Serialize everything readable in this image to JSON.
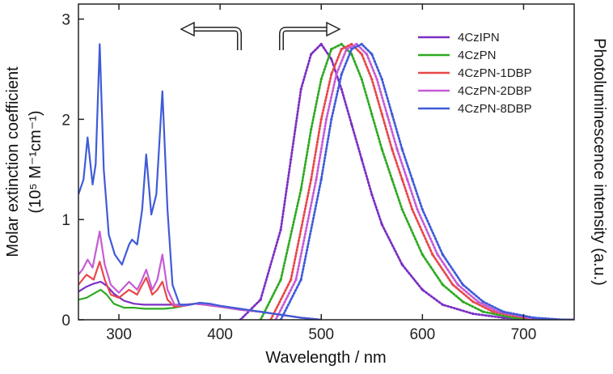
{
  "chart_data": {
    "type": "line",
    "xlabel": "Wavelength / nm",
    "ylabel_left_line1": "Molar extinction coefficient",
    "ylabel_left_line2": "(10⁵ M⁻¹cm⁻¹)",
    "ylabel_right": "Photoluminescence intensity (a.u.)",
    "xlim": [
      260,
      750
    ],
    "ylim": [
      0,
      3.15
    ],
    "x_ticks": [
      300,
      400,
      500,
      600,
      700
    ],
    "y_ticks": [
      0,
      1,
      2,
      3
    ],
    "grid": false,
    "legend_position": "top-right",
    "arrows": [
      {
        "direction": "left",
        "meaning": "absorption axis"
      },
      {
        "direction": "right",
        "meaning": "emission axis"
      }
    ],
    "series": [
      {
        "name": "4CzIPN",
        "color": "#7B2FC4",
        "absorption": {
          "x": [
            260,
            268,
            275,
            282,
            288,
            295,
            305,
            315,
            325,
            335,
            345,
            355,
            365,
            375,
            385,
            400,
            420,
            440,
            460,
            480,
            500
          ],
          "y": [
            0.28,
            0.33,
            0.36,
            0.38,
            0.34,
            0.26,
            0.19,
            0.16,
            0.15,
            0.15,
            0.15,
            0.15,
            0.15,
            0.16,
            0.15,
            0.13,
            0.1,
            0.08,
            0.05,
            0.02,
            0.0
          ]
        },
        "emission": {
          "x": [
            420,
            440,
            460,
            470,
            480,
            490,
            500,
            510,
            520,
            530,
            540,
            550,
            560,
            580,
            600,
            620,
            650,
            680,
            720,
            750
          ],
          "y": [
            0.0,
            0.2,
            0.9,
            1.6,
            2.3,
            2.65,
            2.75,
            2.6,
            2.3,
            1.95,
            1.6,
            1.25,
            0.95,
            0.55,
            0.3,
            0.15,
            0.06,
            0.02,
            0.0,
            0.0
          ]
        }
      },
      {
        "name": "4CzPN",
        "color": "#2EAA22",
        "absorption": {
          "x": [
            260,
            268,
            275,
            282,
            288,
            295,
            305,
            315,
            325,
            335,
            345,
            355,
            365,
            375,
            385,
            400,
            420,
            440,
            460,
            480,
            500
          ],
          "y": [
            0.2,
            0.22,
            0.26,
            0.3,
            0.25,
            0.16,
            0.12,
            0.12,
            0.11,
            0.11,
            0.11,
            0.12,
            0.14,
            0.16,
            0.15,
            0.13,
            0.1,
            0.08,
            0.05,
            0.02,
            0.0
          ]
        },
        "emission": {
          "x": [
            440,
            460,
            480,
            490,
            500,
            510,
            520,
            530,
            540,
            550,
            560,
            570,
            580,
            600,
            620,
            640,
            660,
            690,
            720,
            750
          ],
          "y": [
            0.0,
            0.4,
            1.3,
            1.9,
            2.4,
            2.7,
            2.75,
            2.65,
            2.4,
            2.05,
            1.7,
            1.4,
            1.1,
            0.65,
            0.35,
            0.18,
            0.08,
            0.02,
            0.0,
            0.0
          ]
        }
      },
      {
        "name": "4CzPN-1DBP",
        "color": "#E8474A",
        "absorption": {
          "x": [
            260,
            268,
            275,
            281,
            286,
            292,
            300,
            310,
            318,
            322,
            327,
            333,
            338,
            343,
            348,
            355,
            365,
            375,
            385,
            400,
            420,
            440,
            460,
            480,
            500
          ],
          "y": [
            0.35,
            0.45,
            0.4,
            0.58,
            0.4,
            0.25,
            0.22,
            0.3,
            0.25,
            0.33,
            0.42,
            0.25,
            0.3,
            0.38,
            0.2,
            0.13,
            0.14,
            0.16,
            0.15,
            0.13,
            0.1,
            0.08,
            0.05,
            0.02,
            0.0
          ]
        },
        "emission": {
          "x": [
            450,
            470,
            490,
            500,
            510,
            520,
            530,
            540,
            550,
            560,
            570,
            580,
            590,
            610,
            630,
            650,
            670,
            700,
            730,
            750
          ],
          "y": [
            0.0,
            0.4,
            1.4,
            2.0,
            2.45,
            2.7,
            2.75,
            2.65,
            2.4,
            2.05,
            1.7,
            1.4,
            1.1,
            0.65,
            0.35,
            0.18,
            0.08,
            0.02,
            0.0,
            0.0
          ]
        }
      },
      {
        "name": "4CzPN-2DBP",
        "color": "#C55BD6",
        "absorption": {
          "x": [
            260,
            264,
            269,
            274,
            281,
            286,
            292,
            300,
            310,
            318,
            322,
            327,
            333,
            338,
            343,
            348,
            355,
            365,
            375,
            385,
            400,
            420,
            440,
            460,
            480,
            500
          ],
          "y": [
            0.45,
            0.5,
            0.6,
            0.52,
            0.88,
            0.55,
            0.35,
            0.27,
            0.38,
            0.3,
            0.38,
            0.5,
            0.3,
            0.4,
            0.65,
            0.3,
            0.15,
            0.14,
            0.16,
            0.15,
            0.13,
            0.1,
            0.08,
            0.05,
            0.02,
            0.0
          ]
        },
        "emission": {
          "x": [
            455,
            475,
            495,
            505,
            515,
            525,
            535,
            545,
            555,
            565,
            575,
            585,
            595,
            615,
            635,
            655,
            675,
            705,
            735,
            750
          ],
          "y": [
            0.0,
            0.4,
            1.4,
            2.0,
            2.45,
            2.7,
            2.75,
            2.65,
            2.4,
            2.05,
            1.7,
            1.4,
            1.1,
            0.65,
            0.35,
            0.18,
            0.08,
            0.02,
            0.0,
            0.0
          ]
        }
      },
      {
        "name": "4CzPN-8DBP",
        "color": "#3F5BD8",
        "absorption": {
          "x": [
            260,
            265,
            269,
            274,
            277,
            281,
            285,
            290,
            296,
            303,
            310,
            313,
            318,
            323,
            327,
            332,
            337,
            343,
            348,
            353,
            360,
            370,
            380,
            390,
            400,
            420,
            440,
            460,
            480,
            500
          ],
          "y": [
            1.25,
            1.4,
            1.82,
            1.35,
            1.55,
            2.75,
            1.5,
            0.85,
            0.65,
            0.55,
            0.75,
            0.8,
            0.75,
            1.1,
            1.65,
            1.05,
            1.25,
            2.28,
            1.1,
            0.35,
            0.15,
            0.15,
            0.17,
            0.16,
            0.14,
            0.11,
            0.08,
            0.05,
            0.02,
            0.0
          ]
        },
        "emission": {
          "x": [
            460,
            480,
            500,
            510,
            520,
            530,
            540,
            550,
            560,
            570,
            580,
            590,
            600,
            620,
            640,
            660,
            680,
            710,
            740,
            750
          ],
          "y": [
            0.0,
            0.4,
            1.4,
            2.0,
            2.45,
            2.7,
            2.75,
            2.65,
            2.4,
            2.05,
            1.7,
            1.4,
            1.1,
            0.65,
            0.35,
            0.18,
            0.08,
            0.02,
            0.0,
            0.0
          ]
        }
      }
    ]
  }
}
